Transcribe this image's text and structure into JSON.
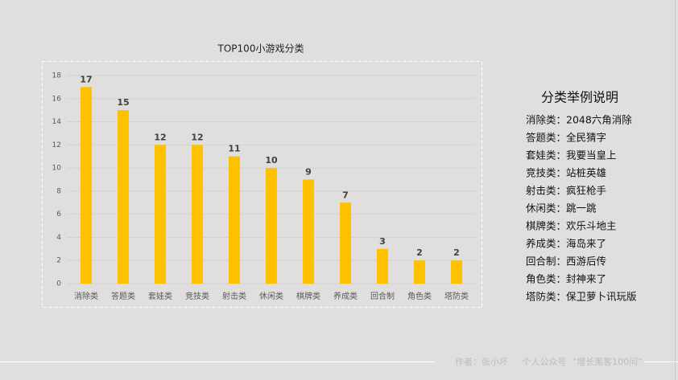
{
  "chart_data": {
    "type": "bar",
    "title": "TOP100小游戏分类",
    "categories": [
      "消除类",
      "答题类",
      "套娃类",
      "竞技类",
      "射击类",
      "休闲类",
      "棋牌类",
      "养成类",
      "回合制",
      "角色类",
      "塔防类"
    ],
    "values": [
      17,
      15,
      12,
      12,
      11,
      10,
      9,
      7,
      3,
      2,
      2
    ],
    "color": "#ffc000",
    "ylim": [
      0,
      18
    ],
    "yticks": [
      0,
      2,
      4,
      6,
      8,
      10,
      12,
      14,
      16,
      18
    ],
    "grid": true
  },
  "side_panel": {
    "title": "分类举例说明",
    "items": [
      "消除类：2048六角消除",
      "答题类：全民猜字",
      "套娃类：我要当皇上",
      "竞技类：站桩英雄",
      "射击类：疯狂枪手",
      "休闲类：跳一跳",
      "棋牌类：欢乐斗地主",
      "养成类：海岛来了",
      "回合制：西游后传",
      "角色类：封神来了",
      "塔防类：保卫萝卜讯玩版"
    ]
  },
  "footer": "作者：张小坏     个人公众号  “增长黑客100问”"
}
